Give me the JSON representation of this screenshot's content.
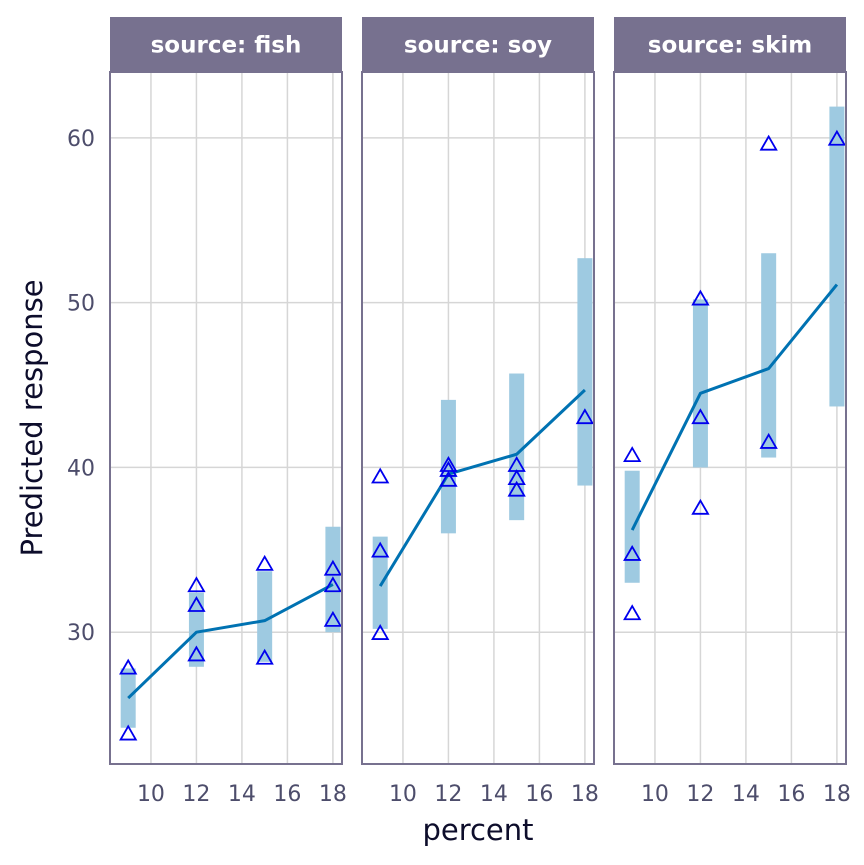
{
  "chart_data": {
    "type": "line",
    "xlabel": "percent",
    "ylabel": "Predicted response",
    "xlim": [
      8.2,
      18.4
    ],
    "ylim": [
      22,
      64
    ],
    "x_ticks": [
      10,
      12,
      14,
      16,
      18
    ],
    "y_ticks": [
      30,
      40,
      50,
      60
    ],
    "grid": true,
    "colors": {
      "strip_fill": "#77718f",
      "panel_border": "#77718f",
      "grid": "#d6d6d6",
      "ribbon": "#9ecae1",
      "line": "#0072b2",
      "points": "#0000ee"
    },
    "panels": [
      {
        "label": "source: fish",
        "x": [
          9,
          12,
          15,
          18
        ],
        "predicted": [
          26.0,
          30.0,
          30.7,
          32.9
        ],
        "lower": [
          24.2,
          27.9,
          28.2,
          30.0
        ],
        "upper": [
          27.8,
          32.4,
          33.7,
          36.4
        ],
        "points": [
          {
            "x": 9,
            "y": 27.8
          },
          {
            "x": 9,
            "y": 23.8
          },
          {
            "x": 12,
            "y": 32.8
          },
          {
            "x": 12,
            "y": 31.6
          },
          {
            "x": 12,
            "y": 28.6
          },
          {
            "x": 15,
            "y": 34.1
          },
          {
            "x": 15,
            "y": 28.4
          },
          {
            "x": 18,
            "y": 33.8
          },
          {
            "x": 18,
            "y": 32.8
          },
          {
            "x": 18,
            "y": 30.7
          }
        ]
      },
      {
        "label": "source: soy",
        "x": [
          9,
          12,
          15,
          18
        ],
        "predicted": [
          32.8,
          39.6,
          40.8,
          44.7
        ],
        "lower": [
          30.2,
          36.0,
          36.8,
          38.9
        ],
        "upper": [
          35.8,
          44.1,
          45.7,
          52.7
        ],
        "points": [
          {
            "x": 9,
            "y": 39.4
          },
          {
            "x": 9,
            "y": 34.9
          },
          {
            "x": 9,
            "y": 29.9
          },
          {
            "x": 12,
            "y": 40.1
          },
          {
            "x": 12,
            "y": 39.8
          },
          {
            "x": 12,
            "y": 39.2
          },
          {
            "x": 15,
            "y": 40.1
          },
          {
            "x": 15,
            "y": 39.3
          },
          {
            "x": 15,
            "y": 38.6
          },
          {
            "x": 18,
            "y": 43.0
          }
        ]
      },
      {
        "label": "source: skim",
        "x": [
          9,
          12,
          15,
          18
        ],
        "predicted": [
          36.2,
          44.5,
          46.0,
          51.1
        ],
        "lower": [
          33.0,
          40.0,
          40.6,
          43.7
        ],
        "upper": [
          39.8,
          50.2,
          53.0,
          61.9
        ],
        "points": [
          {
            "x": 9,
            "y": 40.7
          },
          {
            "x": 9,
            "y": 34.7
          },
          {
            "x": 9,
            "y": 31.1
          },
          {
            "x": 12,
            "y": 50.2
          },
          {
            "x": 12,
            "y": 43.0
          },
          {
            "x": 12,
            "y": 37.5
          },
          {
            "x": 15,
            "y": 59.6
          },
          {
            "x": 15,
            "y": 41.5
          },
          {
            "x": 18,
            "y": 59.9
          }
        ]
      }
    ]
  }
}
